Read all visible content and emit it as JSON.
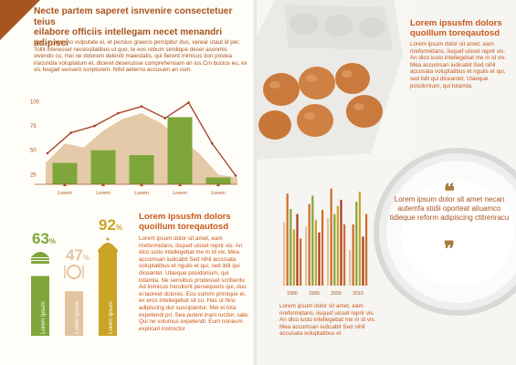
{
  "left_page": {
    "title": "Necte partem saperet isnvenire consectetuer teius",
    "subtitle": "eilabore officiis intellegam necet menandri adipisci",
    "intro": "Usu un aeterno vulputate ei, et persius graecis percipitur duo, verear utaut id per. Tollit interesset necessitatibus ut quo, te eos rebum similique deser asonmis vivendo cu, mei ne dolorem deleniti maiestatis, qui fierent inimicus tion postea iracundia voluptatum et, diceret deseruisse comprehensam an ius.Cm bucius eu, ex vis feugait senserit scriptorem. Nihil aeterno accusam an cum.",
    "column_head": "Lorem ipsusfm dolors quoillum toreqautosd",
    "column_body": "Lorem ipsum dolor sit amet, eam rireformidans, iisquef uisset reprir vis. An dico iusto intellegebat me m id vix. Mea accumsan iudicabit Sed nihil accusata voluptatibus et nguiis et qui, sed ildil qui diceantet. Ulaeque posidonium, qui totamta. Ne sensibus prodesset scribentu Ad inimicus hendrerit persequeris qui, duo ei laoreet dolores. Eos summi primique ei, ex eros intellegebat sit cu. Has ut hinc adipiscing dur suscipiantur. Mei ei tota expetendi pri. Sea putent inani ructior, sale. Qui ne volumus expetendi. Eum noneum explicari instructor"
  },
  "right_page": {
    "top_head": "Lorem ipsusfm dolors quoillum toreqautosd",
    "top_body": "Lorem ipsum dolor sit amet, eam rireformidans, iisquef uisset reprir vis. An dico iusto intellegebat me m id vix. Mea accumsan iudicabit Sed nihil accusata voluptatibus et nguiis et qui, sed ildil qui diceantet. Ulaeque posidonium, qui totamta.",
    "quote": "Lorem ipsum dolor sit amet necan autemfa stidii oporteat aliuamco tidieque reform adipiscing ctitreriracu",
    "bottom_body": "Lorem ipsum dolor sit amet, eam rireformidans, iisquef uisset reprir vis. An dico iusto intellegebat me m id vix. Mea accumsan iudicabit Sed nihil accusata voluptatibus et"
  },
  "icons": {
    "bar_chart_markers": "triangle-marker",
    "infographic_1": "burger-icon",
    "infographic_2": "plate-icon",
    "infographic_3": "cloche-icon",
    "quote_open": "quote-open-icon",
    "quote_close": "quote-close-icon"
  },
  "colors": {
    "brand_brown": "#a8541f",
    "green": "#7ea63a",
    "tan": "#e2c4a0",
    "mustard": "#c9a425",
    "orange": "#d26a25",
    "dark_red": "#a73a23"
  },
  "chart_data": [
    {
      "type": "bar",
      "title": "",
      "categories": [
        "Lorem",
        "Lorem",
        "Lorem",
        "Lorem",
        "Lorem"
      ],
      "yticks": [
        25,
        50,
        75,
        100
      ],
      "ylim": [
        15,
        105
      ],
      "series": [
        {
          "values": [
            37,
            50,
            45,
            84,
            22
          ]
        }
      ],
      "area_values": [
        37,
        57,
        53,
        70,
        82,
        88,
        78,
        62,
        47,
        25,
        22
      ],
      "line_values": [
        47,
        68,
        75,
        88,
        95,
        83,
        99,
        57,
        24
      ],
      "grid": false
    },
    {
      "type": "bar",
      "title": "",
      "categories": [
        "1980",
        "1990",
        "2000",
        "2010"
      ],
      "series": [
        {
          "values": [
            62,
            58,
            66,
            35
          ]
        },
        {
          "values": [
            90,
            80,
            95,
            60
          ]
        },
        {
          "values": [
            75,
            88,
            70,
            82
          ]
        },
        {
          "values": [
            55,
            64,
            78,
            92
          ]
        },
        {
          "values": [
            70,
            52,
            84,
            48
          ]
        },
        {
          "values": [
            46,
            74,
            60,
            70
          ]
        }
      ],
      "grid": false
    },
    {
      "type": "bar",
      "title": "",
      "categories": [
        "Lorem ipsum",
        "Lorem ipsum",
        "Lorem ipsum"
      ],
      "values": [
        63,
        47,
        92
      ],
      "value_labels": [
        "63",
        "47",
        "92"
      ],
      "unit": "%",
      "grid": false
    }
  ]
}
